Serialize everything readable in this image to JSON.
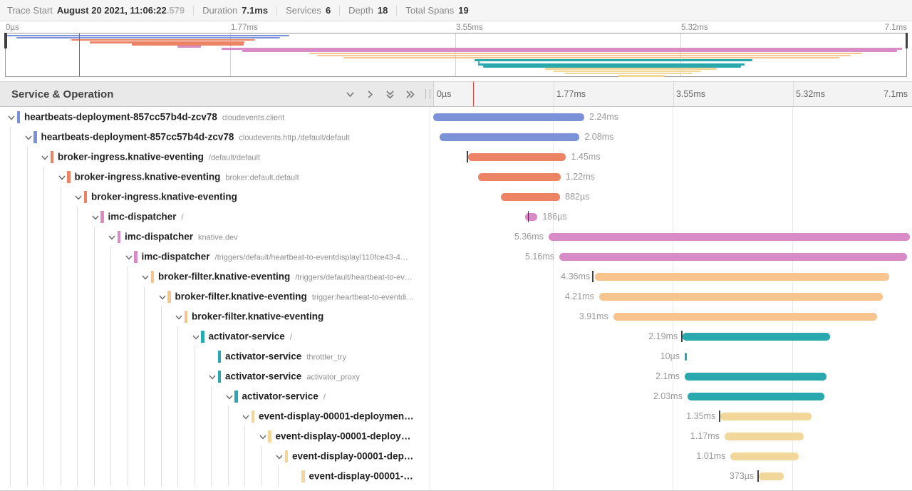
{
  "summary": {
    "trace_start_label": "Trace Start",
    "trace_start_value": "August 20 2021, 11:06:22",
    "trace_start_fraction": ".579",
    "duration_label": "Duration",
    "duration_value": "7.1ms",
    "services_label": "Services",
    "services_value": "6",
    "depth_label": "Depth",
    "depth_value": "18",
    "total_spans_label": "Total Spans",
    "total_spans_value": "19"
  },
  "left_header": {
    "title": "Service & Operation"
  },
  "timeline": {
    "total_ms": 7.1,
    "ticks": [
      "0µs",
      "1.77ms",
      "3.55ms",
      "5.32ms",
      "7.1ms"
    ],
    "cursor_ms": 0.58,
    "cursor_color": "#e53935"
  },
  "colors": {
    "blue": "#7b91d8",
    "salmon": "#ed8365",
    "pink": "#d98bc8",
    "peach": "#f8c48e",
    "teal": "#29a8ad",
    "tan": "#f1d79a",
    "grid": "#e8e8e8",
    "handle": "#414141"
  },
  "chart_data": {
    "type": "gantt-trace",
    "title": "Jaeger trace timeline",
    "x_unit": "ms",
    "x_range": [
      0,
      7.1
    ],
    "spans": [
      {
        "service": "heartbeats-deployment-857cc57b4d-zcv78",
        "operation": "cloudevents.client",
        "level": 0,
        "color": "blue",
        "start_ms": 0.0,
        "duration_ms": 2.24,
        "duration_label": "2.24ms",
        "label_side": "right",
        "has_children": true,
        "tick_ms": null
      },
      {
        "service": "heartbeats-deployment-857cc57b4d-zcv78",
        "operation": "cloudevents.http./default/default",
        "level": 1,
        "color": "blue",
        "start_ms": 0.09,
        "duration_ms": 2.08,
        "duration_label": "2.08ms",
        "label_side": "right",
        "has_children": true,
        "tick_ms": null
      },
      {
        "service": "broker-ingress.knative-eventing",
        "operation": "/default/default",
        "level": 2,
        "color": "salmon",
        "start_ms": 0.52,
        "duration_ms": 1.45,
        "duration_label": "1.45ms",
        "label_side": "right",
        "has_children": true,
        "tick_ms": 0.5
      },
      {
        "service": "broker-ingress.knative-eventing",
        "operation": "broker:default.default",
        "level": 3,
        "color": "salmon",
        "start_ms": 0.67,
        "duration_ms": 1.22,
        "duration_label": "1.22ms",
        "label_side": "right",
        "has_children": true,
        "tick_ms": null
      },
      {
        "service": "broker-ingress.knative-eventing",
        "operation": "",
        "level": 4,
        "color": "salmon",
        "start_ms": 1.0,
        "duration_ms": 0.882,
        "duration_label": "882µs",
        "label_side": "right",
        "has_children": true,
        "tick_ms": null
      },
      {
        "service": "imc-dispatcher",
        "operation": "/",
        "level": 5,
        "color": "pink",
        "start_ms": 1.36,
        "duration_ms": 0.186,
        "duration_label": "186µs",
        "label_side": "right",
        "has_children": true,
        "tick_ms": 1.4
      },
      {
        "service": "imc-dispatcher",
        "operation": "knative.dev",
        "level": 6,
        "color": "pink",
        "start_ms": 1.71,
        "duration_ms": 5.36,
        "duration_label": "5.36ms",
        "label_side": "left",
        "has_children": true,
        "tick_ms": null
      },
      {
        "service": "imc-dispatcher",
        "operation": "/triggers/default/heartbeat-to-eventdisplay/110fce43-4…",
        "level": 7,
        "color": "pink",
        "start_ms": 1.87,
        "duration_ms": 5.16,
        "duration_label": "5.16ms",
        "label_side": "left",
        "has_children": true,
        "tick_ms": null
      },
      {
        "service": "broker-filter.knative-eventing",
        "operation": "/triggers/default/heartbeat-to-ev…",
        "level": 8,
        "color": "peach",
        "start_ms": 2.4,
        "duration_ms": 4.36,
        "duration_label": "4.36ms",
        "label_side": "left",
        "has_children": true,
        "tick_ms": 2.36
      },
      {
        "service": "broker-filter.knative-eventing",
        "operation": "trigger:heartbeat-to-eventdi…",
        "level": 9,
        "color": "peach",
        "start_ms": 2.46,
        "duration_ms": 4.21,
        "duration_label": "4.21ms",
        "label_side": "left",
        "has_children": true,
        "tick_ms": null
      },
      {
        "service": "broker-filter.knative-eventing",
        "operation": "",
        "level": 10,
        "color": "peach",
        "start_ms": 2.67,
        "duration_ms": 3.91,
        "duration_label": "3.91ms",
        "label_side": "left",
        "has_children": true,
        "tick_ms": null
      },
      {
        "service": "activator-service",
        "operation": "/",
        "level": 11,
        "color": "teal",
        "start_ms": 3.7,
        "duration_ms": 2.19,
        "duration_label": "2.19ms",
        "label_side": "left",
        "has_children": true,
        "tick_ms": 3.68
      },
      {
        "service": "activator-service",
        "operation": "throttler_try",
        "level": 12,
        "color": "teal",
        "start_ms": 3.73,
        "duration_ms": 0.01,
        "duration_label": "10µs",
        "label_side": "left",
        "has_children": false,
        "tick_ms": null
      },
      {
        "service": "activator-service",
        "operation": "activator_proxy",
        "level": 12,
        "color": "teal",
        "start_ms": 3.73,
        "duration_ms": 2.1,
        "duration_label": "2.1ms",
        "label_side": "left",
        "has_children": true,
        "tick_ms": null
      },
      {
        "service": "activator-service",
        "operation": "/",
        "level": 13,
        "color": "teal",
        "start_ms": 3.77,
        "duration_ms": 2.03,
        "duration_label": "2.03ms",
        "label_side": "left",
        "has_children": true,
        "tick_ms": null
      },
      {
        "service": "event-display-00001-deploymen…",
        "operation": "",
        "level": 14,
        "color": "tan",
        "start_ms": 4.26,
        "duration_ms": 1.35,
        "duration_label": "1.35ms",
        "label_side": "left",
        "has_children": true,
        "tick_ms": 4.24
      },
      {
        "service": "event-display-00001-deploy…",
        "operation": "",
        "level": 15,
        "color": "tan",
        "start_ms": 4.32,
        "duration_ms": 1.17,
        "duration_label": "1.17ms",
        "label_side": "left",
        "has_children": true,
        "tick_ms": null
      },
      {
        "service": "event-display-00001-dep…",
        "operation": "",
        "level": 16,
        "color": "tan",
        "start_ms": 4.41,
        "duration_ms": 1.01,
        "duration_label": "1.01ms",
        "label_side": "left",
        "has_children": true,
        "tick_ms": null
      },
      {
        "service": "event-display-00001-…",
        "operation": "",
        "level": 17,
        "color": "tan",
        "start_ms": 4.83,
        "duration_ms": 0.373,
        "duration_label": "373µs",
        "label_side": "left",
        "has_children": false,
        "tick_ms": 4.81
      }
    ]
  }
}
